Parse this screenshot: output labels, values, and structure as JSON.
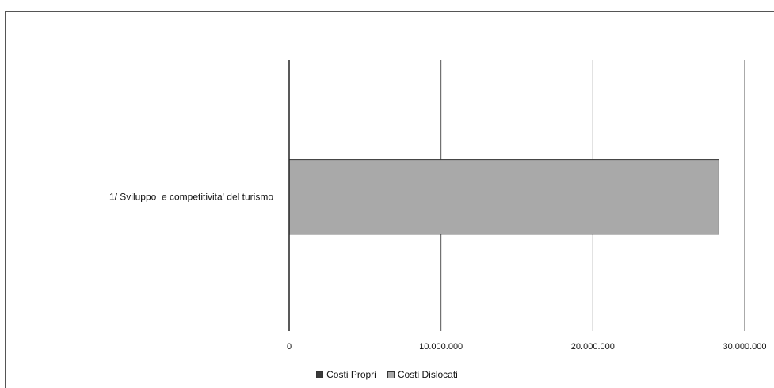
{
  "chart_data": {
    "type": "bar",
    "orientation": "horizontal",
    "stacked": true,
    "categories": [
      "1/ Sviluppo  e competitivita' del turismo"
    ],
    "series": [
      {
        "name": "Costi Propri",
        "values": [
          0
        ],
        "color": "#3a3a3a"
      },
      {
        "name": "Costi Dislocati",
        "values": [
          28300000
        ],
        "color": "#a9a9a9"
      }
    ],
    "xlim": [
      0,
      30000000
    ],
    "xticks": [
      "0",
      "10.000.000",
      "20.000.000",
      "30.000.000"
    ],
    "xtick_values": [
      0,
      10000000,
      20000000,
      30000000
    ],
    "grid": true,
    "legend_position": "bottom"
  }
}
